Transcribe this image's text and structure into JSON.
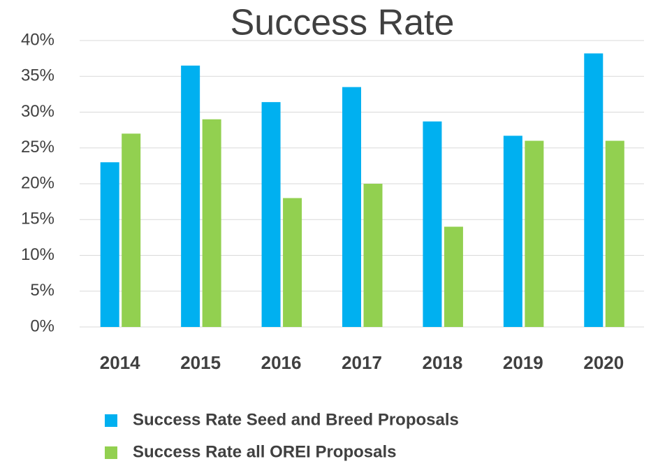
{
  "chart_data": {
    "type": "bar",
    "title": "Success Rate",
    "categories": [
      "2014",
      "2015",
      "2016",
      "2017",
      "2018",
      "2019",
      "2020"
    ],
    "series": [
      {
        "name": "Success Rate Seed and Breed Proposals",
        "color": "#00b0f0",
        "values": [
          23,
          36.5,
          31.4,
          33.5,
          28.7,
          26.7,
          38.2
        ]
      },
      {
        "name": "Success Rate all OREI Proposals",
        "color": "#92d050",
        "values": [
          27,
          29,
          18,
          20,
          14,
          26,
          26
        ]
      }
    ],
    "ylim": [
      0,
      40
    ],
    "yticks": [
      {
        "value": 0,
        "label": "0%"
      },
      {
        "value": 5,
        "label": "5%"
      },
      {
        "value": 10,
        "label": "10%"
      },
      {
        "value": 15,
        "label": "15%"
      },
      {
        "value": 20,
        "label": "20%"
      },
      {
        "value": 25,
        "label": "25%"
      },
      {
        "value": 30,
        "label": "30%"
      },
      {
        "value": 35,
        "label": "35%"
      },
      {
        "value": 40,
        "label": "40%"
      }
    ],
    "grid": true
  }
}
